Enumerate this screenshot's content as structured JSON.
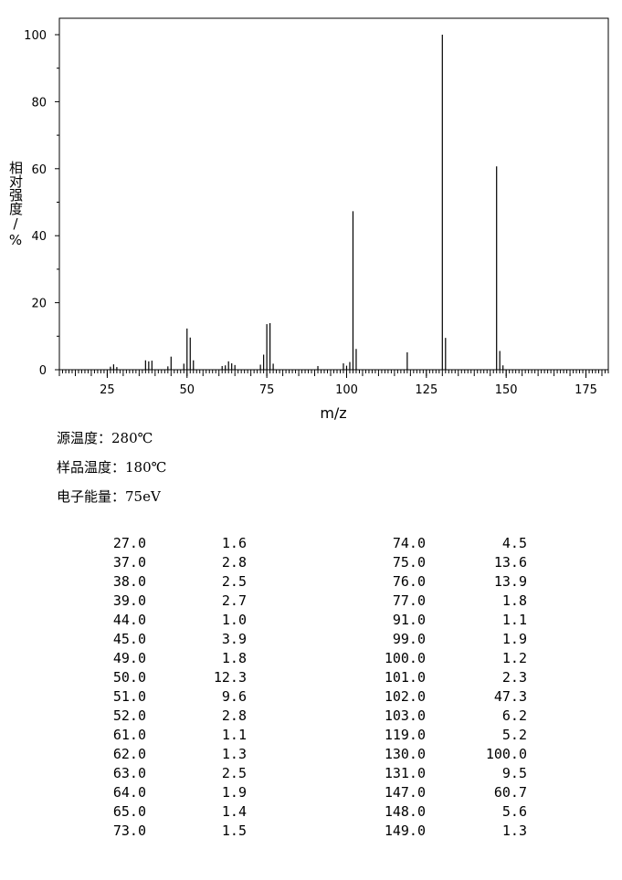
{
  "chart_data": {
    "type": "bar",
    "xlabel": "m/z",
    "ylabel": "相对强度/%",
    "xlim": [
      10,
      182
    ],
    "ylim": [
      0,
      105
    ],
    "xticks": [
      25,
      50,
      75,
      100,
      125,
      150,
      175
    ],
    "yticks": [
      0,
      20,
      40,
      60,
      80,
      100
    ],
    "peaks": [
      {
        "mz": 26.0,
        "i": 0.9
      },
      {
        "mz": 27.0,
        "i": 1.6
      },
      {
        "mz": 28.0,
        "i": 0.8
      },
      {
        "mz": 37.0,
        "i": 2.8
      },
      {
        "mz": 38.0,
        "i": 2.5
      },
      {
        "mz": 39.0,
        "i": 2.7
      },
      {
        "mz": 44.0,
        "i": 1.0
      },
      {
        "mz": 45.0,
        "i": 3.9
      },
      {
        "mz": 49.0,
        "i": 1.8
      },
      {
        "mz": 50.0,
        "i": 12.3
      },
      {
        "mz": 51.0,
        "i": 9.6
      },
      {
        "mz": 52.0,
        "i": 2.8
      },
      {
        "mz": 61.0,
        "i": 1.1
      },
      {
        "mz": 62.0,
        "i": 1.3
      },
      {
        "mz": 63.0,
        "i": 2.5
      },
      {
        "mz": 64.0,
        "i": 1.9
      },
      {
        "mz": 65.0,
        "i": 1.4
      },
      {
        "mz": 73.0,
        "i": 1.5
      },
      {
        "mz": 74.0,
        "i": 4.5
      },
      {
        "mz": 75.0,
        "i": 13.6
      },
      {
        "mz": 76.0,
        "i": 13.9
      },
      {
        "mz": 77.0,
        "i": 1.8
      },
      {
        "mz": 91.0,
        "i": 1.1
      },
      {
        "mz": 99.0,
        "i": 1.9
      },
      {
        "mz": 100.0,
        "i": 1.2
      },
      {
        "mz": 101.0,
        "i": 2.3
      },
      {
        "mz": 102.0,
        "i": 47.3
      },
      {
        "mz": 103.0,
        "i": 6.2
      },
      {
        "mz": 119.0,
        "i": 5.2
      },
      {
        "mz": 130.0,
        "i": 100.0
      },
      {
        "mz": 131.0,
        "i": 9.5
      },
      {
        "mz": 147.0,
        "i": 60.7
      },
      {
        "mz": 148.0,
        "i": 5.6
      },
      {
        "mz": 149.0,
        "i": 1.3
      }
    ]
  },
  "conditions": [
    {
      "label": "源温度：",
      "value": "280℃"
    },
    {
      "label": "样品温度：",
      "value": "180℃"
    },
    {
      "label": "电子能量：",
      "value": "75eV"
    }
  ],
  "table": {
    "left": [
      [
        "27.0",
        "1.6"
      ],
      [
        "37.0",
        "2.8"
      ],
      [
        "38.0",
        "2.5"
      ],
      [
        "39.0",
        "2.7"
      ],
      [
        "44.0",
        "1.0"
      ],
      [
        "45.0",
        "3.9"
      ],
      [
        "49.0",
        "1.8"
      ],
      [
        "50.0",
        "12.3"
      ],
      [
        "51.0",
        "9.6"
      ],
      [
        "52.0",
        "2.8"
      ],
      [
        "61.0",
        "1.1"
      ],
      [
        "62.0",
        "1.3"
      ],
      [
        "63.0",
        "2.5"
      ],
      [
        "64.0",
        "1.9"
      ],
      [
        "65.0",
        "1.4"
      ],
      [
        "73.0",
        "1.5"
      ]
    ],
    "right": [
      [
        "74.0",
        "4.5"
      ],
      [
        "75.0",
        "13.6"
      ],
      [
        "76.0",
        "13.9"
      ],
      [
        "77.0",
        "1.8"
      ],
      [
        "91.0",
        "1.1"
      ],
      [
        "99.0",
        "1.9"
      ],
      [
        "100.0",
        "1.2"
      ],
      [
        "101.0",
        "2.3"
      ],
      [
        "102.0",
        "47.3"
      ],
      [
        "103.0",
        "6.2"
      ],
      [
        "119.0",
        "5.2"
      ],
      [
        "130.0",
        "100.0"
      ],
      [
        "131.0",
        "9.5"
      ],
      [
        "147.0",
        "60.7"
      ],
      [
        "148.0",
        "5.6"
      ],
      [
        "149.0",
        "1.3"
      ]
    ]
  }
}
